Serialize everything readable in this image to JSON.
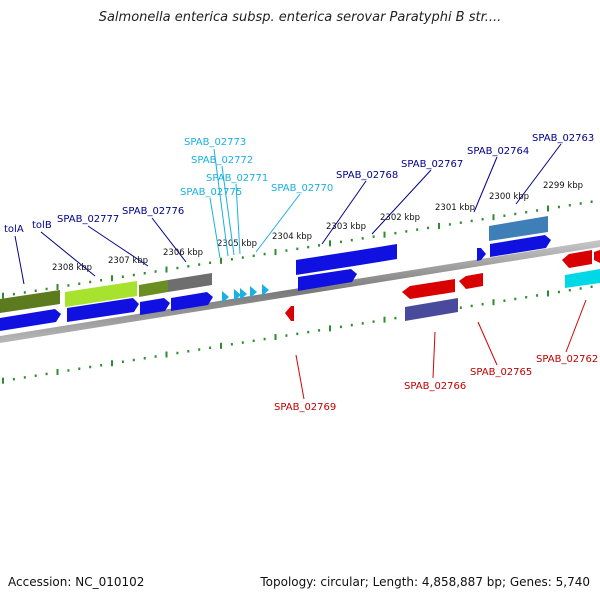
{
  "title": "Salmonella enterica subsp. enterica serovar Paratyphi B str....",
  "footer": {
    "accession": "Accession: NC_010102",
    "topology": "Topology: circular; Length: 4,858,887 bp; Genes: 5,740"
  },
  "colors": {
    "backbone": "#8a8a8a",
    "tick": "#2e8b2e",
    "blue": "#1010e0",
    "darkblue": "#00008b",
    "cyan": "#1ab0e0",
    "red": "#d80000",
    "olive": "#6b8e23",
    "lime": "#a6e22e",
    "slate": "#4a4a9c",
    "steel": "#3e7fb8",
    "gray": "#6e6e6e",
    "teal": "#00d8e8"
  },
  "ruler": {
    "labels": [
      "2308 kbp",
      "2307 kbp",
      "2306 kbp",
      "2305 kbp",
      "2304 kbp",
      "2303 kbp",
      "2302 kbp",
      "2301 kbp",
      "2300 kbp",
      "2299 kbp"
    ]
  },
  "genes": {
    "top": [
      {
        "name": "tolA",
        "color": "#00008b"
      },
      {
        "name": "tolB",
        "color": "#00008b"
      },
      {
        "name": "SPAB_02777",
        "color": "#00008b"
      },
      {
        "name": "SPAB_02776",
        "color": "#00008b"
      },
      {
        "name": "SPAB_02775",
        "color": "#1ab0e0"
      },
      {
        "name": "SPAB_02773",
        "color": "#1ab0e0"
      },
      {
        "name": "SPAB_02772",
        "color": "#1ab0e0"
      },
      {
        "name": "SPAB_02771",
        "color": "#1ab0e0"
      },
      {
        "name": "SPAB_02770",
        "color": "#1ab0e0"
      },
      {
        "name": "SPAB_02768",
        "color": "#00008b"
      },
      {
        "name": "SPAB_02767",
        "color": "#00008b"
      },
      {
        "name": "SPAB_02764",
        "color": "#00008b"
      },
      {
        "name": "SPAB_02763",
        "color": "#00008b"
      }
    ],
    "bottom": [
      {
        "name": "SPAB_02769",
        "color": "#c00000"
      },
      {
        "name": "SPAB_02766",
        "color": "#c00000"
      },
      {
        "name": "SPAB_02765",
        "color": "#c00000"
      },
      {
        "name": "SPAB_02762",
        "color": "#c00000"
      }
    ]
  }
}
